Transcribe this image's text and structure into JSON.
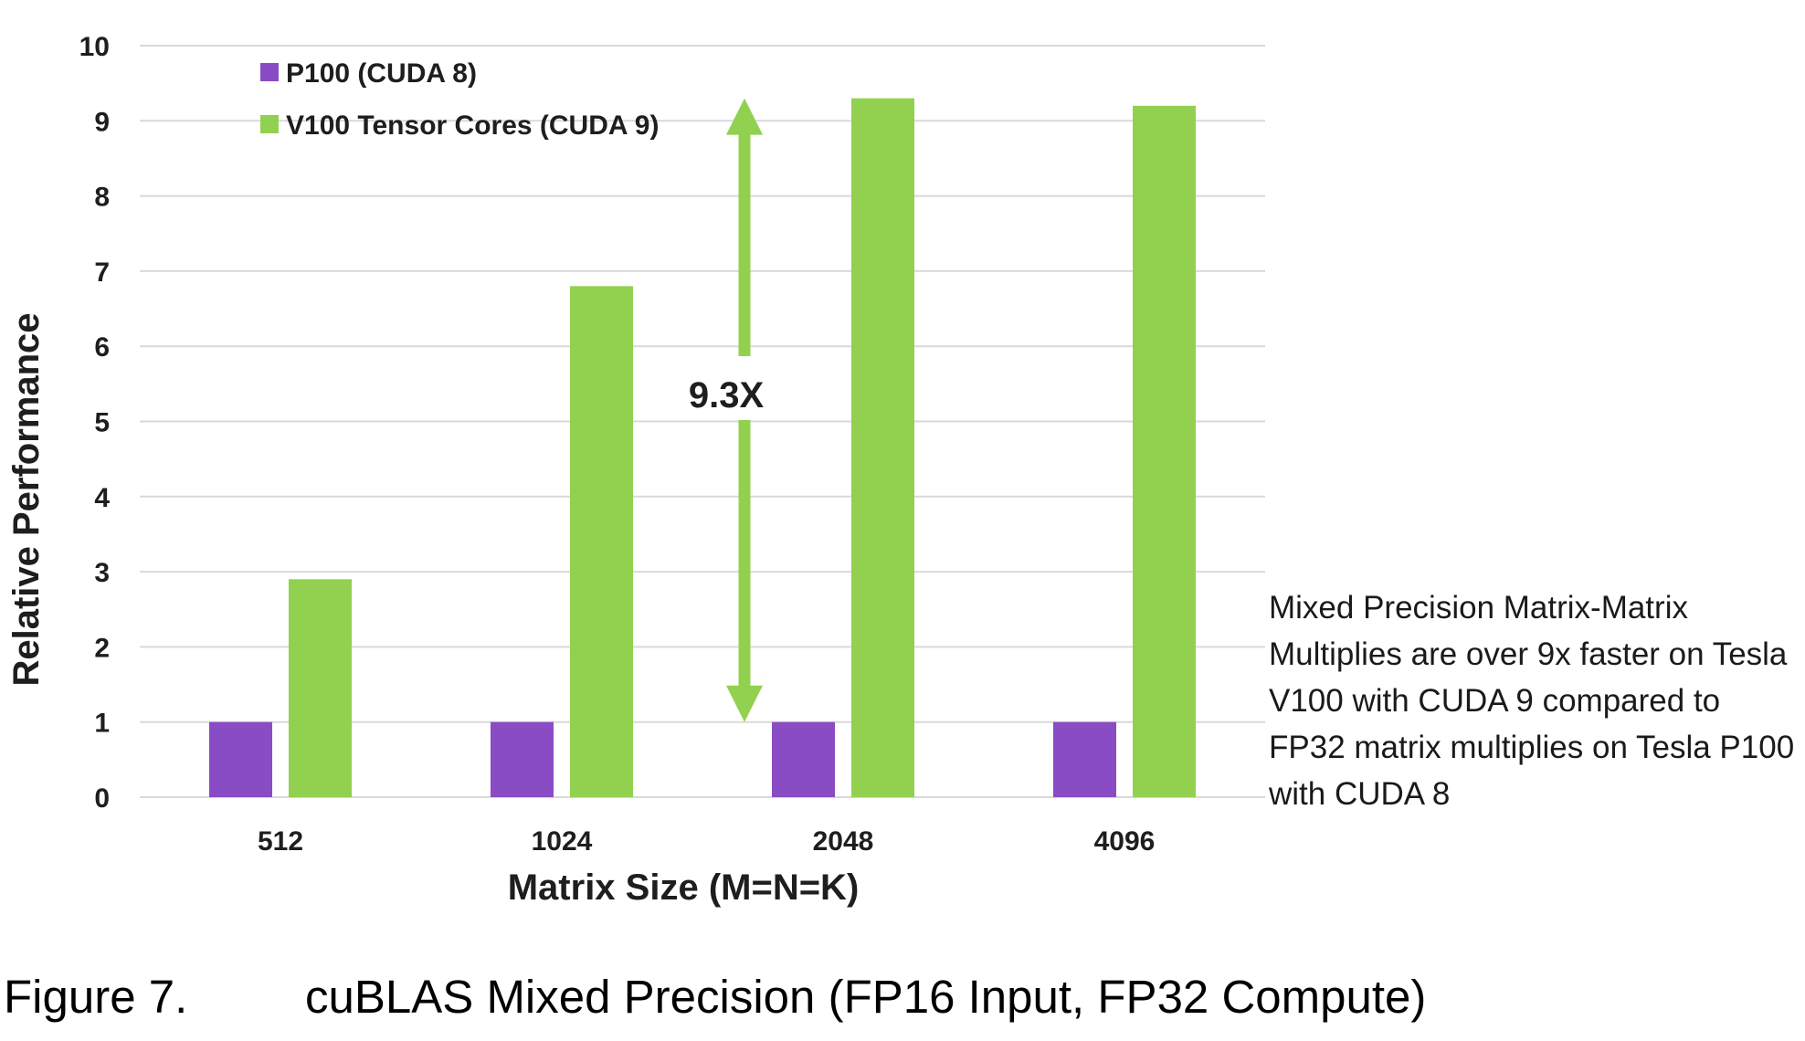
{
  "chart_data": {
    "type": "bar",
    "categories": [
      "512",
      "1024",
      "2048",
      "4096"
    ],
    "series": [
      {
        "name": "P100 (CUDA 8)",
        "values": [
          1,
          1,
          1,
          1
        ],
        "color": "#8a4cc4"
      },
      {
        "name": "V100 Tensor Cores (CUDA 9)",
        "values": [
          2.9,
          6.8,
          9.3,
          9.2
        ],
        "color": "#92d050"
      }
    ],
    "xlabel": "Matrix Size (M=N=K)",
    "ylabel": "Relative Performance",
    "ylim": [
      0,
      10
    ],
    "yticks": [
      "0",
      "1",
      "2",
      "3",
      "4",
      "5",
      "6",
      "7",
      "8",
      "9",
      "10"
    ],
    "grid": true,
    "legend_position": "top-left",
    "annotation": {
      "label": "9.3X",
      "category": "2048",
      "from": 1,
      "to": 9.3,
      "color": "#92d050"
    }
  },
  "side_note": "Mixed Precision Matrix-Matrix Multiplies are over 9x faster on Tesla V100 with CUDA 9 compared to FP32 matrix multiplies on Tesla P100 with CUDA 8",
  "caption": {
    "figure_label": "Figure 7.",
    "title": "cuBLAS Mixed Precision (FP16 Input, FP32 Compute)"
  }
}
